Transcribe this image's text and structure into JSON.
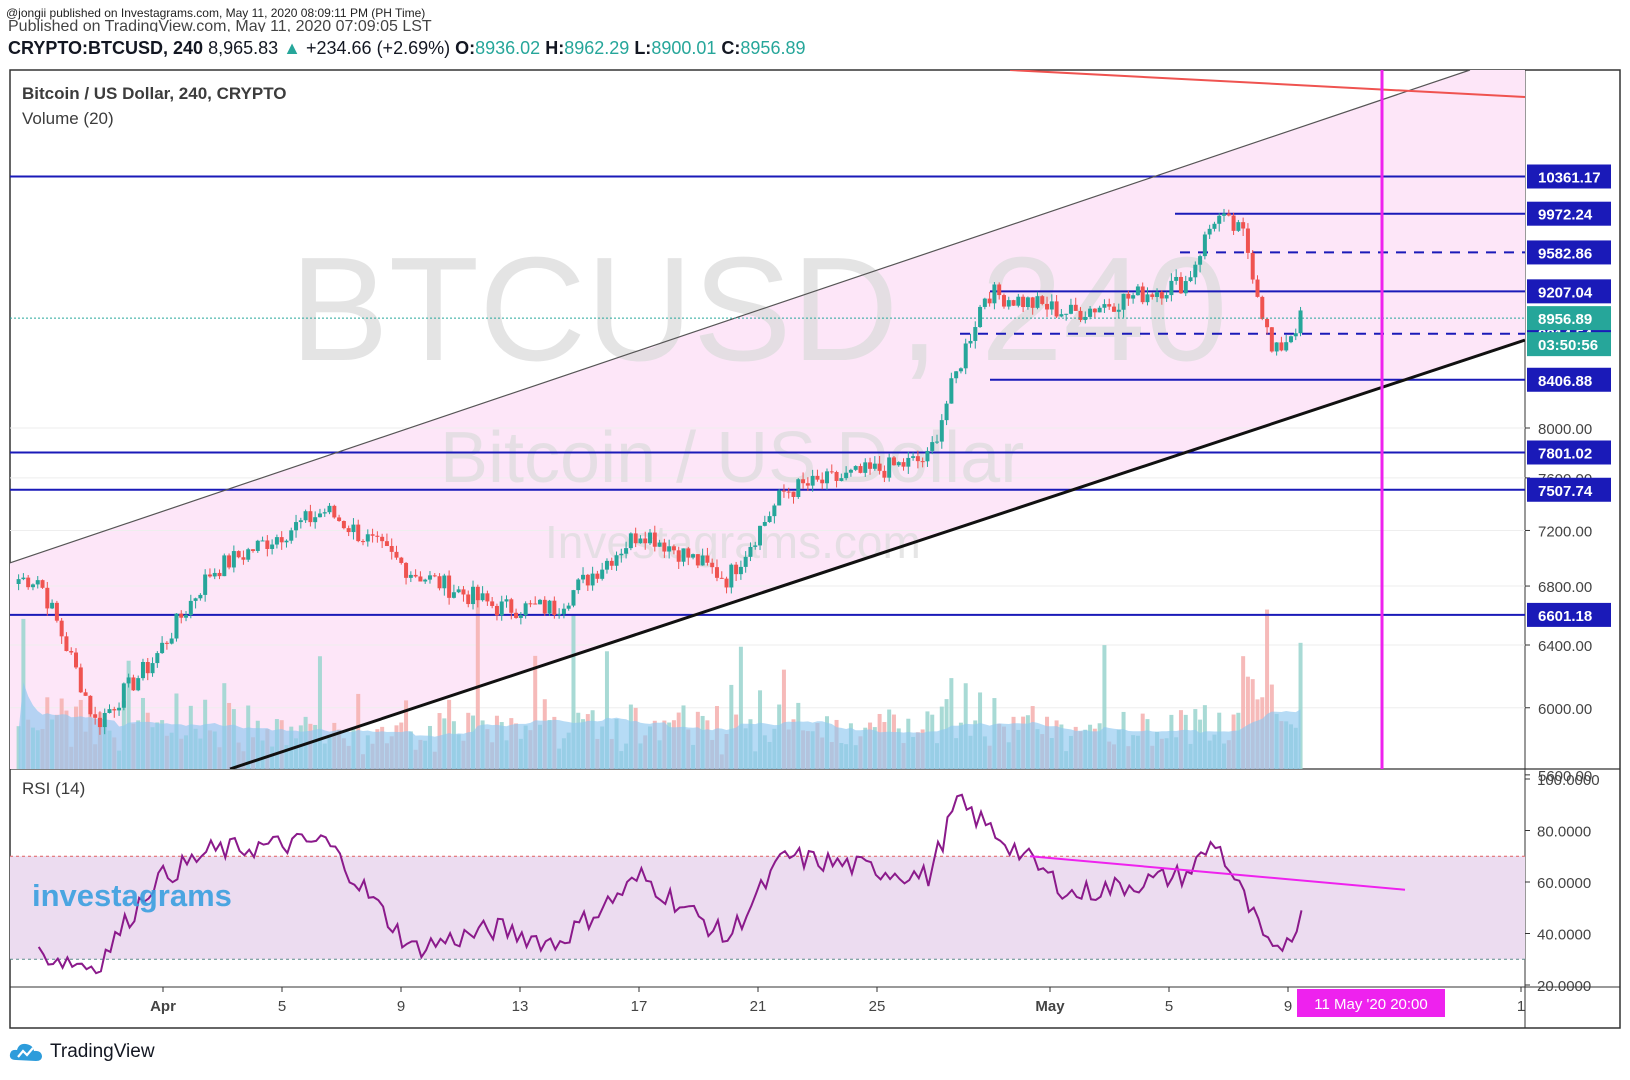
{
  "header": {
    "published_line": "@jongii published on Investagrams.com, May 11, 2020 08:09:11 PM (PH Time)",
    "published_line2": "Published on TradingView.com, May 11, 2020 07:09:05 LST",
    "symbol": "CRYPTO:BTCUSD, 240",
    "last": "8,965.83",
    "change": "+234.66 (+2.69%)",
    "open_label": "O:",
    "open": "8936.02",
    "high_label": "H:",
    "high": "8962.29",
    "low_label": "L:",
    "low": "8900.01",
    "close_label": "C:",
    "close": "8956.89"
  },
  "legend": {
    "title": "Bitcoin / US Dollar, 240, CRYPTO",
    "volume": "Volume (20)",
    "rsi": "RSI (14)"
  },
  "watermark": {
    "big": "BTCUSD, 240",
    "mid": "Bitcoin / US Dollar",
    "small": "Investagrams.com",
    "brand": "investagrams"
  },
  "footer": {
    "brand": "TradingView"
  },
  "colors": {
    "up": "#26a69a",
    "down": "#ef5350",
    "levels": "#1a1ab8",
    "channel_fill": "#fde6f8",
    "marker": "#ee22ee",
    "rsi_line": "#8b1a8b",
    "resistance": "#ef5350"
  },
  "chart_data": [
    {
      "type": "candlestick",
      "title": "Bitcoin / US Dollar, 240, CRYPTO",
      "x_tick_labels": [
        "Apr",
        "5",
        "9",
        "13",
        "17",
        "21",
        "25",
        "May",
        "5",
        "9",
        "1"
      ],
      "y_tick_labels": [
        "8000.00",
        "7600.00",
        "7200.00",
        "6800.00",
        "6400.00",
        "6000.00",
        "5600.00"
      ],
      "ylim": [
        5450,
        10650
      ],
      "price_levels": [
        10361.17,
        9972.24,
        9582.86,
        9207.04,
        8814.54,
        8406.88,
        7801.02,
        7507.74,
        6601.18
      ],
      "price_level_labels": [
        "10361.17",
        "9972.24",
        "9582.86",
        "9207.04",
        "8814.54",
        "8406.88",
        "7801.02",
        "7507.74",
        "6601.18"
      ],
      "last_price_label": "8956.89",
      "countdown_label": "03:50:56",
      "cursor_label": "11 May '20   20:00",
      "key_prices": [
        {
          "date": "Mar 28",
          "price": 6850
        },
        {
          "date": "Mar 30",
          "price": 5900
        },
        {
          "date": "Apr 1",
          "price": 6300
        },
        {
          "date": "Apr 3",
          "price": 6900
        },
        {
          "date": "Apr 7",
          "price": 7350
        },
        {
          "date": "Apr 10",
          "price": 6900
        },
        {
          "date": "Apr 13",
          "price": 6650
        },
        {
          "date": "Apr 15",
          "price": 6650
        },
        {
          "date": "Apr 18",
          "price": 7200
        },
        {
          "date": "Apr 21",
          "price": 6850
        },
        {
          "date": "Apr 23",
          "price": 7500
        },
        {
          "date": "Apr 28",
          "price": 7750
        },
        {
          "date": "Apr 30",
          "price": 9200
        },
        {
          "date": "May 3",
          "price": 9000
        },
        {
          "date": "May 7",
          "price": 9300
        },
        {
          "date": "May 8",
          "price": 9950
        },
        {
          "date": "May 9",
          "price": 9750
        },
        {
          "date": "May 10",
          "price": 8600
        },
        {
          "date": "May 11",
          "price": 8957
        }
      ],
      "volume_label": "Volume (20)"
    },
    {
      "type": "line",
      "title": "RSI (14)",
      "y_tick_labels": [
        "100.0000",
        "80.0000",
        "60.0000",
        "40.0000",
        "20.0000"
      ],
      "ylim": [
        20,
        100
      ],
      "bands": [
        30,
        70
      ],
      "key_values": [
        {
          "date": "Mar 28",
          "value": 32
        },
        {
          "date": "Mar 30",
          "value": 27
        },
        {
          "date": "Apr 1",
          "value": 60
        },
        {
          "date": "Apr 3",
          "value": 72
        },
        {
          "date": "Apr 7",
          "value": 76
        },
        {
          "date": "Apr 10",
          "value": 34
        },
        {
          "date": "Apr 13",
          "value": 42
        },
        {
          "date": "Apr 15",
          "value": 36
        },
        {
          "date": "Apr 18",
          "value": 62
        },
        {
          "date": "Apr 21",
          "value": 38
        },
        {
          "date": "Apr 23",
          "value": 70
        },
        {
          "date": "Apr 28",
          "value": 62
        },
        {
          "date": "Apr 29",
          "value": 91
        },
        {
          "date": "May 3",
          "value": 55
        },
        {
          "date": "May 7",
          "value": 63
        },
        {
          "date": "May 8",
          "value": 76
        },
        {
          "date": "May 10",
          "value": 31
        },
        {
          "date": "May 11",
          "value": 46
        }
      ]
    }
  ]
}
